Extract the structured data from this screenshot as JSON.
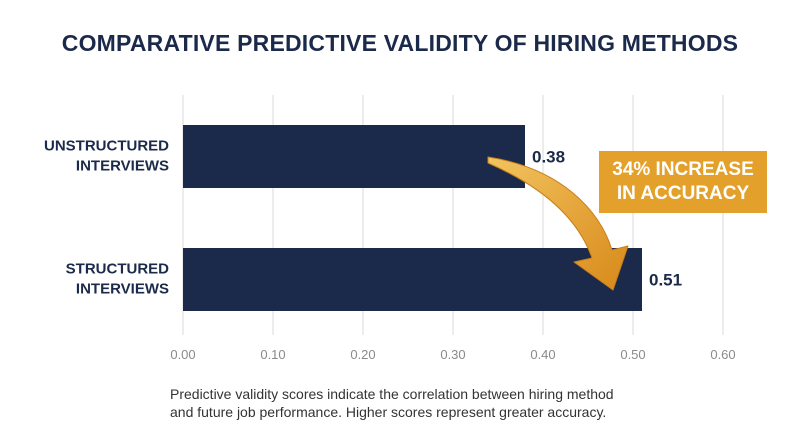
{
  "chart_data": {
    "type": "bar",
    "orientation": "horizontal",
    "title": "COMPARATIVE PREDICTIVE VALIDITY OF HIRING METHODS",
    "categories": [
      [
        "UNSTRUCTURED",
        "INTERVIEWS"
      ],
      [
        "STRUCTURED",
        "INTERVIEWS"
      ]
    ],
    "values": [
      0.38,
      0.51
    ],
    "value_labels": [
      "0.38",
      "0.51"
    ],
    "xlim": [
      0,
      0.6
    ],
    "x_ticks": [
      0,
      0.1,
      0.2,
      0.3,
      0.4,
      0.5,
      0.6
    ],
    "x_tick_labels": [
      "0.00",
      "0.10",
      "0.20",
      "0.30",
      "0.40",
      "0.50",
      "0.60"
    ],
    "grid": "vertical",
    "annotation": {
      "lines": [
        "34% INCREASE",
        "IN ACCURACY"
      ],
      "placement": "right"
    },
    "colors": {
      "bar": "#1b2a4a",
      "accent": "#e3a02a",
      "grid": "#d9d9d9"
    }
  },
  "footnote": {
    "lines": [
      "Predictive validity scores indicate the correlation between hiring method",
      "and future job performance. Higher scores represent greater accuracy."
    ]
  }
}
